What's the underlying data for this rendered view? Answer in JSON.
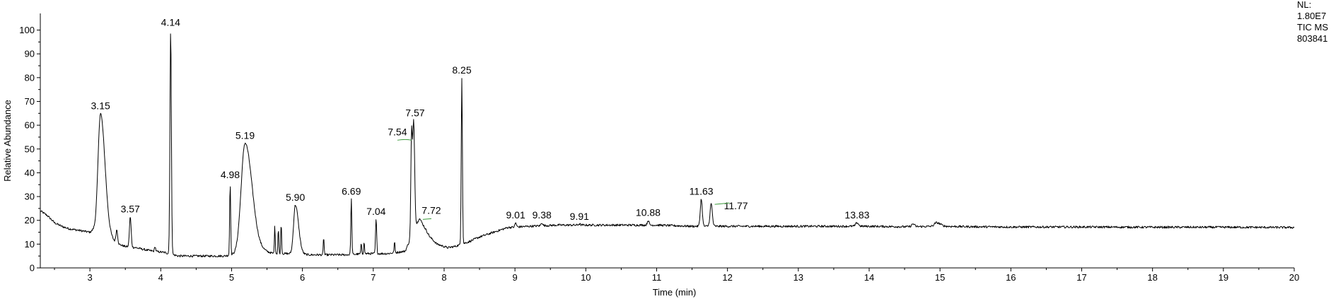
{
  "chart_data": {
    "type": "line",
    "title": "",
    "xlabel": "Time (min)",
    "ylabel": "Relative Abundance",
    "xlim": [
      2.3,
      20
    ],
    "ylim": [
      0,
      107
    ],
    "grid": false,
    "x_ticks": [
      3,
      4,
      5,
      6,
      7,
      8,
      9,
      10,
      11,
      12,
      13,
      14,
      15,
      16,
      17,
      18,
      19,
      20
    ],
    "y_ticks": [
      0,
      10,
      20,
      30,
      40,
      50,
      60,
      70,
      80,
      90,
      100
    ],
    "info": [
      "NL:",
      "1.80E7",
      "TIC  MS",
      "803841"
    ],
    "peak_labels": [
      {
        "x": 3.15,
        "y": 65,
        "text": "3.15"
      },
      {
        "x": 3.57,
        "y": 21.5,
        "text": "3.57"
      },
      {
        "x": 4.14,
        "y": 100,
        "text": "4.14"
      },
      {
        "x": 4.98,
        "y": 36,
        "text": "4.98"
      },
      {
        "x": 5.19,
        "y": 52.5,
        "text": "5.19"
      },
      {
        "x": 5.9,
        "y": 26.5,
        "text": "5.90"
      },
      {
        "x": 6.69,
        "y": 29,
        "text": "6.69"
      },
      {
        "x": 7.04,
        "y": 20.5,
        "text": "7.04"
      },
      {
        "x": 7.54,
        "y": 54,
        "text": "7.54"
      },
      {
        "x": 7.57,
        "y": 62,
        "text": "7.57"
      },
      {
        "x": 7.72,
        "y": 21,
        "text": "7.72"
      },
      {
        "x": 8.25,
        "y": 80,
        "text": "8.25"
      },
      {
        "x": 9.01,
        "y": 19,
        "text": "9.01"
      },
      {
        "x": 9.38,
        "y": 19,
        "text": "9.38"
      },
      {
        "x": 9.91,
        "y": 18.5,
        "text": "9.91"
      },
      {
        "x": 10.88,
        "y": 20,
        "text": "10.88"
      },
      {
        "x": 11.63,
        "y": 29,
        "text": "11.63"
      },
      {
        "x": 11.77,
        "y": 27,
        "text": "11.77"
      },
      {
        "x": 13.83,
        "y": 19,
        "text": "13.83"
      }
    ],
    "series": [
      {
        "baseline": [
          [
            2.3,
            24
          ],
          [
            2.4,
            22
          ],
          [
            2.5,
            19
          ],
          [
            2.6,
            17.5
          ],
          [
            2.7,
            16.5
          ],
          [
            2.8,
            16
          ],
          [
            2.9,
            15.5
          ],
          [
            3.0,
            15
          ],
          [
            3.05,
            16
          ],
          [
            3.3,
            12
          ],
          [
            3.4,
            10
          ],
          [
            3.5,
            9
          ],
          [
            3.65,
            8.5
          ],
          [
            3.8,
            7.5
          ],
          [
            3.9,
            7
          ],
          [
            4.05,
            6.5
          ],
          [
            4.25,
            5
          ],
          [
            4.5,
            5
          ],
          [
            4.7,
            5
          ],
          [
            4.9,
            5
          ],
          [
            5.1,
            6
          ],
          [
            5.45,
            7
          ],
          [
            5.6,
            6
          ],
          [
            5.8,
            6
          ],
          [
            6.1,
            5.5
          ],
          [
            6.4,
            5.5
          ],
          [
            6.6,
            5.5
          ],
          [
            6.9,
            6
          ],
          [
            7.2,
            6
          ],
          [
            7.45,
            7
          ],
          [
            7.65,
            21
          ],
          [
            7.8,
            13
          ],
          [
            7.9,
            10
          ],
          [
            8.05,
            8.5
          ],
          [
            8.15,
            9
          ],
          [
            8.35,
            11
          ],
          [
            8.5,
            13
          ],
          [
            8.7,
            15
          ],
          [
            8.9,
            17
          ],
          [
            9.2,
            17.5
          ],
          [
            9.6,
            18
          ],
          [
            10.0,
            18
          ],
          [
            10.5,
            18
          ],
          [
            11.0,
            18
          ],
          [
            11.5,
            17.5
          ],
          [
            12.0,
            17.5
          ],
          [
            12.5,
            17.5
          ],
          [
            13.0,
            17.5
          ],
          [
            13.5,
            17.5
          ],
          [
            14.0,
            17.5
          ],
          [
            14.5,
            17.3
          ],
          [
            15.0,
            17.5
          ],
          [
            15.5,
            17.3
          ],
          [
            16.0,
            17.2
          ],
          [
            17.0,
            17.2
          ],
          [
            18.0,
            17.1
          ],
          [
            19.0,
            17.1
          ],
          [
            20.0,
            17
          ]
        ],
        "peaks": [
          {
            "rt": 3.15,
            "h": 65,
            "w": 0.035
          },
          {
            "rt": 3.38,
            "h": 16,
            "w": 0.012
          },
          {
            "rt": 3.57,
            "h": 21.5,
            "w": 0.012
          },
          {
            "rt": 3.92,
            "h": 9,
            "w": 0.008
          },
          {
            "rt": 4.14,
            "h": 100,
            "w": 0.01
          },
          {
            "rt": 4.98,
            "h": 36,
            "w": 0.007
          },
          {
            "rt": 5.19,
            "h": 52.5,
            "w": 0.055
          },
          {
            "rt": 5.61,
            "h": 17.5,
            "w": 0.006
          },
          {
            "rt": 5.66,
            "h": 16.5,
            "w": 0.006
          },
          {
            "rt": 5.7,
            "h": 19,
            "w": 0.006
          },
          {
            "rt": 5.9,
            "h": 26.5,
            "w": 0.025
          },
          {
            "rt": 6.3,
            "h": 13,
            "w": 0.006
          },
          {
            "rt": 6.69,
            "h": 29,
            "w": 0.007
          },
          {
            "rt": 6.83,
            "h": 10,
            "w": 0.006
          },
          {
            "rt": 6.87,
            "h": 11,
            "w": 0.006
          },
          {
            "rt": 7.04,
            "h": 20.5,
            "w": 0.008
          },
          {
            "rt": 7.3,
            "h": 11,
            "w": 0.006
          },
          {
            "rt": 7.54,
            "h": 54,
            "w": 0.01
          },
          {
            "rt": 7.57,
            "h": 62,
            "w": 0.014
          },
          {
            "rt": 8.25,
            "h": 80,
            "w": 0.008
          },
          {
            "rt": 9.01,
            "h": 19,
            "w": 0.01
          },
          {
            "rt": 9.38,
            "h": 19,
            "w": 0.012
          },
          {
            "rt": 9.91,
            "h": 18.5,
            "w": 0.012
          },
          {
            "rt": 10.88,
            "h": 20,
            "w": 0.012
          },
          {
            "rt": 11.63,
            "h": 29,
            "w": 0.014
          },
          {
            "rt": 11.77,
            "h": 27,
            "w": 0.016
          },
          {
            "rt": 13.83,
            "h": 19,
            "w": 0.02
          },
          {
            "rt": 14.62,
            "h": 18.5,
            "w": 0.02
          },
          {
            "rt": 14.95,
            "h": 19,
            "w": 0.03
          }
        ]
      }
    ]
  }
}
